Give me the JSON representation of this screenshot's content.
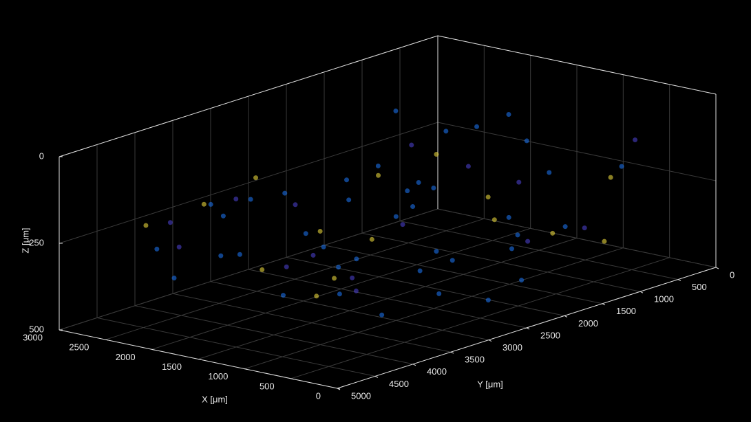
{
  "chart_data": {
    "type": "scatter3d",
    "x_label": "X [μm]",
    "y_label": "Y [μm]",
    "z_label": "Z [μm]",
    "xlim": [
      0,
      3000
    ],
    "ylim": [
      0,
      5000
    ],
    "zlim": [
      0,
      500
    ],
    "z_reversed": true,
    "xticks": [
      0,
      500,
      1000,
      1500,
      2000,
      2500,
      3000
    ],
    "yticks": [
      0,
      500,
      1000,
      1500,
      2000,
      2500,
      3000,
      3500,
      4000,
      4500,
      5000
    ],
    "zticks": [
      0,
      250,
      500
    ],
    "grid": true,
    "alpha": 0.6,
    "series": [
      {
        "color": "#1a6fe8",
        "x": [
          200,
          400,
          600,
          800,
          1000,
          1200,
          1400,
          1600,
          1800,
          2000,
          2200,
          2400,
          2600,
          2800,
          300,
          700,
          1100,
          1500,
          1900,
          2300,
          2700,
          500,
          900,
          1300,
          1700,
          2100,
          2500,
          250,
          650,
          1050,
          1450,
          1850,
          2250,
          2650,
          350,
          750,
          1150,
          1550,
          1950,
          2350
        ],
        "y": [
          1000,
          1500,
          2000,
          2500,
          3000,
          3500,
          4000,
          1200,
          1800,
          2400,
          3000,
          3600,
          4200,
          800,
          2200,
          2800,
          3400,
          900,
          1600,
          2600,
          3200,
          3800,
          1100,
          2100,
          3100,
          4100,
          1400,
          2700,
          1900,
          3700,
          2300,
          1300,
          4400,
          2900,
          3300,
          1700,
          2500,
          600,
          3900,
          2000
        ],
        "z": [
          150,
          300,
          250,
          350,
          200,
          400,
          380,
          100,
          300,
          250,
          200,
          350,
          300,
          150,
          400,
          420,
          300,
          80,
          250,
          350,
          280,
          400,
          200,
          380,
          320,
          150,
          250,
          420,
          350,
          300,
          200,
          120,
          350,
          250,
          60,
          330,
          400,
          180,
          300,
          240
        ]
      },
      {
        "color": "#4a3fc8",
        "x": [
          300,
          900,
          1500,
          2100,
          2700,
          600,
          1200,
          1800,
          2400,
          450,
          1050,
          1650,
          2250,
          2850,
          750
        ],
        "y": [
          700,
          1500,
          2300,
          3100,
          3900,
          1000,
          1800,
          2600,
          3400,
          4200,
          1200,
          2000,
          2800,
          3600,
          4400
        ],
        "z": [
          100,
          200,
          300,
          400,
          250,
          350,
          150,
          450,
          200,
          300,
          400,
          100,
          250,
          350,
          200
        ]
      },
      {
        "color": "#e6d43a",
        "x": [
          400,
          1000,
          1600,
          2200,
          2800,
          700,
          1300,
          1900,
          2500,
          550,
          1150,
          1750,
          2350,
          850,
          1450
        ],
        "y": [
          900,
          1700,
          2500,
          3300,
          4100,
          1300,
          2100,
          2900,
          3700,
          800,
          1600,
          2400,
          3200,
          4000,
          3500
        ],
        "z": [
          200,
          300,
          150,
          400,
          250,
          350,
          100,
          300,
          200,
          400,
          250,
          350,
          150,
          300,
          420
        ]
      }
    ]
  }
}
